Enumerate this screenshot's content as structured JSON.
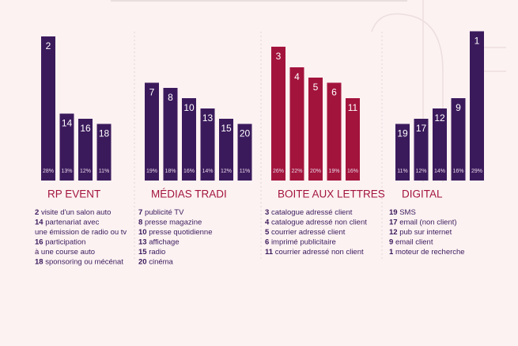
{
  "chart_data": [
    {
      "type": "bar",
      "title": "RP EVENT",
      "color": "#3b1a5c",
      "categories": [
        "2",
        "14",
        "16",
        "18"
      ],
      "values": [
        28,
        13,
        12,
        11
      ],
      "value_labels": [
        "28%",
        "13%",
        "12%",
        "11%"
      ],
      "notes": [
        {
          "rank": "2",
          "lines": [
            "visite d'un salon auto"
          ]
        },
        {
          "rank": "14",
          "lines": [
            "partenariat avec",
            "une émission de radio ou tv"
          ]
        },
        {
          "rank": "16",
          "lines": [
            "participation",
            "à une course auto"
          ]
        },
        {
          "rank": "18",
          "lines": [
            "sponsoring ou mécénat"
          ]
        }
      ]
    },
    {
      "type": "bar",
      "title": "MÉDIAS TRADI",
      "color": "#3b1a5c",
      "categories": [
        "7",
        "8",
        "10",
        "13",
        "15",
        "20"
      ],
      "values": [
        19,
        18,
        16,
        14,
        12,
        11
      ],
      "value_labels": [
        "19%",
        "18%",
        "16%",
        "14%",
        "12%",
        "11%"
      ],
      "notes": [
        {
          "rank": "7",
          "lines": [
            "publicité TV"
          ]
        },
        {
          "rank": "8",
          "lines": [
            "presse magazine"
          ]
        },
        {
          "rank": "10",
          "lines": [
            "presse quotidienne"
          ]
        },
        {
          "rank": "13",
          "lines": [
            "affichage"
          ]
        },
        {
          "rank": "15",
          "lines": [
            "radio"
          ]
        },
        {
          "rank": "20",
          "lines": [
            "cinéma"
          ]
        }
      ]
    },
    {
      "type": "bar",
      "title": "BOITE AUX LETTRES",
      "color": "#a3143c",
      "categories": [
        "3",
        "4",
        "5",
        "6",
        "11"
      ],
      "values": [
        26,
        22,
        20,
        19,
        16
      ],
      "value_labels": [
        "26%",
        "22%",
        "20%",
        "19%",
        "16%"
      ],
      "notes": [
        {
          "rank": "3",
          "lines": [
            "catalogue adressé client"
          ]
        },
        {
          "rank": "4",
          "lines": [
            "catalogue adressé non client"
          ]
        },
        {
          "rank": "5",
          "lines": [
            "courrier adressé client"
          ]
        },
        {
          "rank": "6",
          "lines": [
            "imprimé publicitaire"
          ]
        },
        {
          "rank": "11",
          "lines": [
            "courrier adressé non client"
          ]
        }
      ]
    },
    {
      "type": "bar",
      "title": "DIGITAL",
      "color": "#3b1a5c",
      "categories": [
        "19",
        "17",
        "12",
        "9",
        "1"
      ],
      "values": [
        11,
        12,
        14,
        16,
        29
      ],
      "value_labels": [
        "11%",
        "12%",
        "14%",
        "16%",
        "29%"
      ],
      "notes": [
        {
          "rank": "19",
          "lines": [
            "SMS"
          ]
        },
        {
          "rank": "17",
          "lines": [
            "email (non client)"
          ]
        },
        {
          "rank": "12",
          "lines": [
            "pub sur internet"
          ]
        },
        {
          "rank": "9",
          "lines": [
            "email client"
          ]
        },
        {
          "rank": "1",
          "lines": [
            "moteur de recherche"
          ]
        }
      ]
    }
  ]
}
